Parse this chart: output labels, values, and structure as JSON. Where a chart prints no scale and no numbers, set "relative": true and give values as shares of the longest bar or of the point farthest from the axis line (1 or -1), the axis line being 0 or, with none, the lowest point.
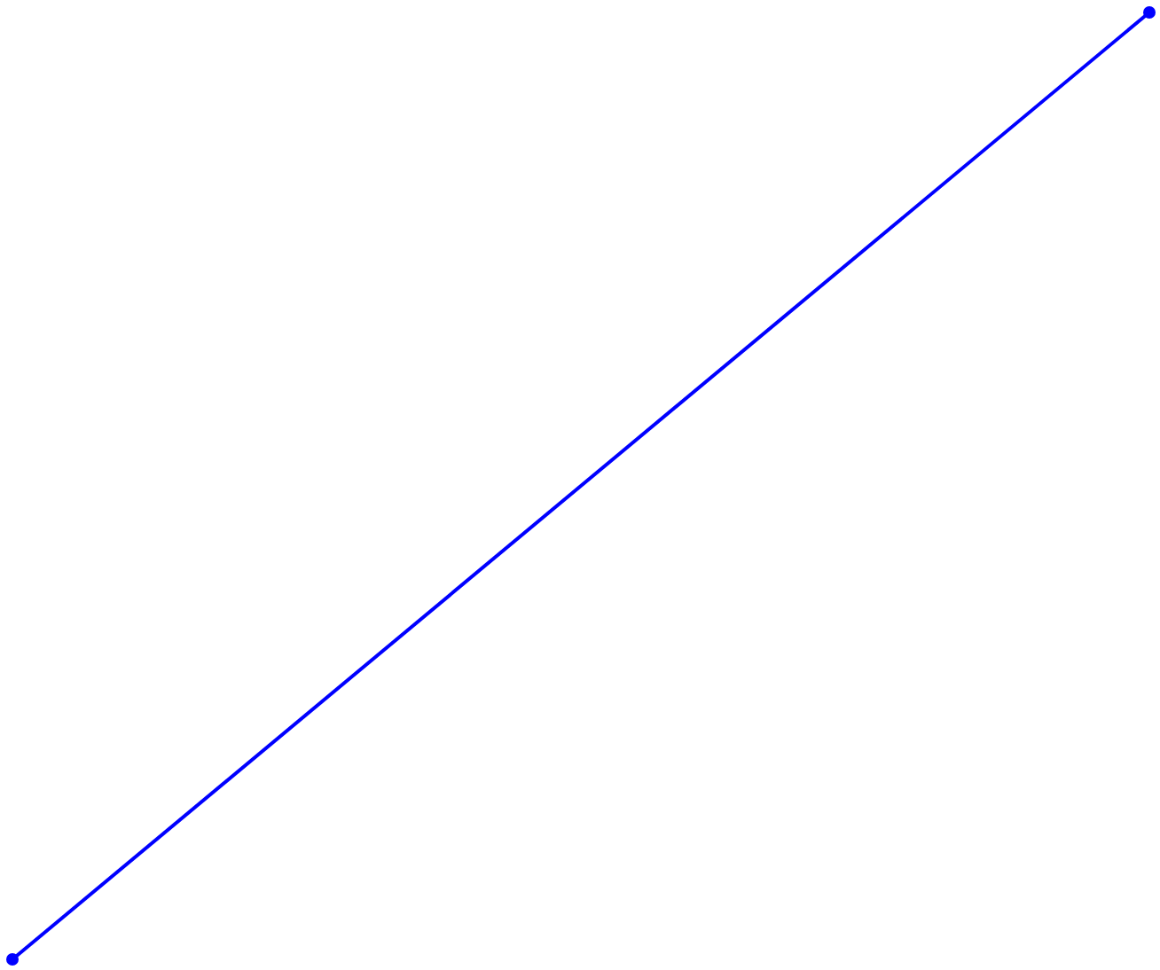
{
  "chart_data": {
    "type": "line",
    "relative": true,
    "categories": [
      null,
      null
    ],
    "series": [
      {
        "color": "#0000ff",
        "values": [
          0,
          1
        ]
      }
    ],
    "marker": "circle",
    "line_style": "solid"
  }
}
